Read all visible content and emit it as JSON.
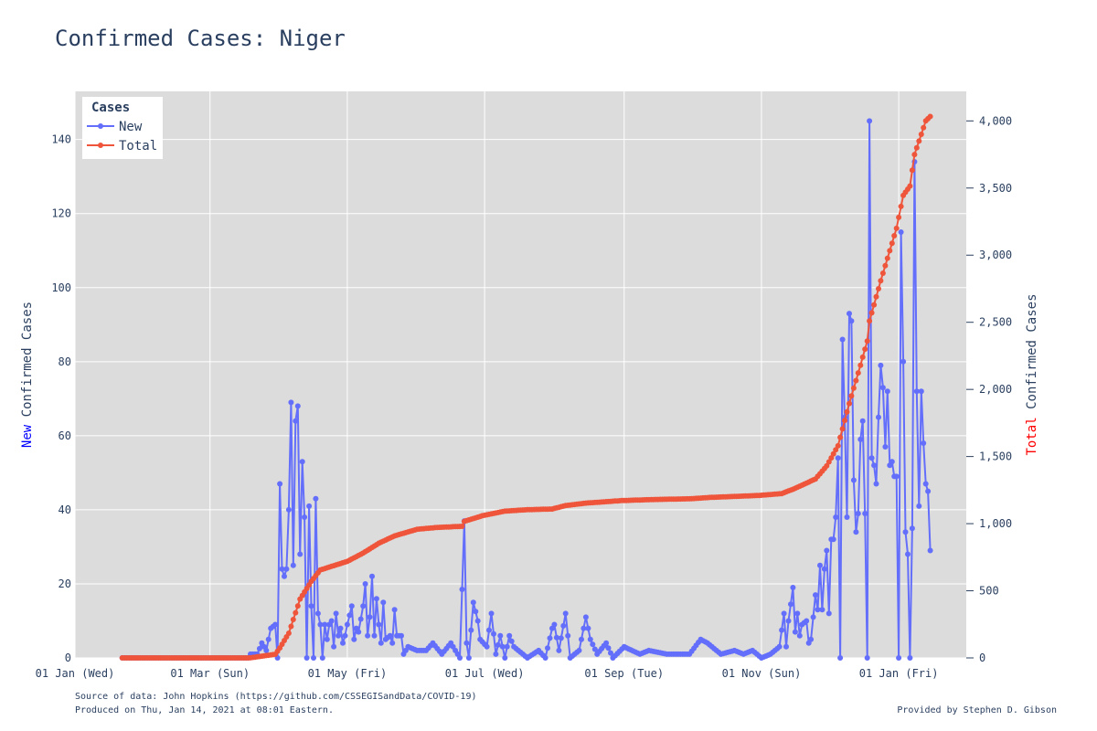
{
  "title": "Confirmed Cases: Niger",
  "colors": {
    "new": "#636efa",
    "total": "#ef553b",
    "plot_bg": "#dcdcdc",
    "grid": "#ffffff",
    "text": "#2a3f5f",
    "y_left_accent": "#0000ff",
    "y_right_accent": "#ff0000"
  },
  "axes": {
    "x_ticks": [
      "01 Jan (Wed)",
      "01 Mar (Sun)",
      "01 May (Fri)",
      "01 Jul (Wed)",
      "01 Sep (Tue)",
      "01 Nov (Sun)",
      "01 Jan (Fri)"
    ],
    "y_left_ticks": [
      "0",
      "20",
      "40",
      "60",
      "80",
      "100",
      "120",
      "140"
    ],
    "y_right_ticks": [
      "0",
      "500",
      "1,000",
      "1,500",
      "2,000",
      "2,500",
      "3,000",
      "3,500",
      "4,000"
    ],
    "y_left_title_accent": "New",
    "y_left_title_rest": " Confirmed Cases",
    "y_right_title_accent": "Total",
    "y_right_title_rest": " Confirmed Cases"
  },
  "legend": {
    "title": "Cases",
    "items": [
      "New",
      "Total"
    ]
  },
  "footer": {
    "source": "Source of data: John Hopkins (https://github.com/CSSEGISandData/COVID-19)",
    "produced": "Produced on Thu, Jan 14, 2021 at 08:01 Eastern.",
    "provided": "Provided by Stephen D. Gibson"
  },
  "chart_data": {
    "type": "line",
    "x_start": "2020-01-22",
    "x_end": "2021-01-13",
    "xlim": [
      "2020-01-01",
      "2021-01-31"
    ],
    "ylim_left": [
      0,
      153
    ],
    "ylim_right": [
      0,
      4220
    ],
    "grid": true,
    "legend_position": "top-left",
    "series": [
      {
        "name": "New",
        "axis": "left",
        "keyframes": [
          [
            "2020-01-22",
            0
          ],
          [
            "2020-03-18",
            0
          ],
          [
            "2020-03-19",
            1
          ],
          [
            "2020-03-22",
            1
          ],
          [
            "2020-03-24",
            4
          ],
          [
            "2020-03-26",
            2
          ],
          [
            "2020-03-28",
            8
          ],
          [
            "2020-03-30",
            9
          ],
          [
            "2020-03-31",
            0
          ],
          [
            "2020-04-01",
            47
          ],
          [
            "2020-04-02",
            24
          ],
          [
            "2020-04-03",
            22
          ],
          [
            "2020-04-04",
            24
          ],
          [
            "2020-04-05",
            40
          ],
          [
            "2020-04-06",
            69
          ],
          [
            "2020-04-07",
            25
          ],
          [
            "2020-04-08",
            64
          ],
          [
            "2020-04-09",
            68
          ],
          [
            "2020-04-10",
            28
          ],
          [
            "2020-04-11",
            53
          ],
          [
            "2020-04-12",
            38
          ],
          [
            "2020-04-13",
            0
          ],
          [
            "2020-04-14",
            41
          ],
          [
            "2020-04-15",
            14
          ],
          [
            "2020-04-16",
            0
          ],
          [
            "2020-04-17",
            43
          ],
          [
            "2020-04-18",
            12
          ],
          [
            "2020-04-19",
            9
          ],
          [
            "2020-04-20",
            0
          ],
          [
            "2020-04-21",
            9
          ],
          [
            "2020-04-22",
            5
          ],
          [
            "2020-04-23",
            9
          ],
          [
            "2020-04-24",
            10
          ],
          [
            "2020-04-25",
            3
          ],
          [
            "2020-04-26",
            12
          ],
          [
            "2020-04-27",
            6
          ],
          [
            "2020-04-28",
            8
          ],
          [
            "2020-04-29",
            4
          ],
          [
            "2020-04-30",
            6
          ],
          [
            "2020-05-01",
            9
          ],
          [
            "2020-05-03",
            14
          ],
          [
            "2020-05-04",
            5
          ],
          [
            "2020-05-05",
            8
          ],
          [
            "2020-05-06",
            7
          ],
          [
            "2020-05-08",
            14
          ],
          [
            "2020-05-09",
            20
          ],
          [
            "2020-05-10",
            6
          ],
          [
            "2020-05-11",
            11
          ],
          [
            "2020-05-12",
            22
          ],
          [
            "2020-05-13",
            6
          ],
          [
            "2020-05-14",
            16
          ],
          [
            "2020-05-15",
            9
          ],
          [
            "2020-05-16",
            4
          ],
          [
            "2020-05-17",
            15
          ],
          [
            "2020-05-18",
            5
          ],
          [
            "2020-05-20",
            6
          ],
          [
            "2020-05-21",
            4
          ],
          [
            "2020-05-22",
            13
          ],
          [
            "2020-05-23",
            6
          ],
          [
            "2020-05-25",
            6
          ],
          [
            "2020-05-26",
            1
          ],
          [
            "2020-05-28",
            3
          ],
          [
            "2020-06-01",
            2
          ],
          [
            "2020-06-05",
            2
          ],
          [
            "2020-06-08",
            4
          ],
          [
            "2020-06-12",
            1
          ],
          [
            "2020-06-16",
            4
          ],
          [
            "2020-06-18",
            2
          ],
          [
            "2020-06-20",
            0
          ],
          [
            "2020-06-22",
            37
          ],
          [
            "2020-06-23",
            4
          ],
          [
            "2020-06-24",
            0
          ],
          [
            "2020-06-26",
            15
          ],
          [
            "2020-06-28",
            10
          ],
          [
            "2020-06-29",
            5
          ],
          [
            "2020-07-02",
            3
          ],
          [
            "2020-07-04",
            12
          ],
          [
            "2020-07-06",
            1
          ],
          [
            "2020-07-08",
            6
          ],
          [
            "2020-07-10",
            0
          ],
          [
            "2020-07-12",
            6
          ],
          [
            "2020-07-14",
            3
          ],
          [
            "2020-07-16",
            2
          ],
          [
            "2020-07-20",
            0
          ],
          [
            "2020-07-25",
            2
          ],
          [
            "2020-07-28",
            0
          ],
          [
            "2020-07-31",
            8
          ],
          [
            "2020-08-01",
            9
          ],
          [
            "2020-08-03",
            2
          ],
          [
            "2020-08-06",
            12
          ],
          [
            "2020-08-08",
            0
          ],
          [
            "2020-08-12",
            2
          ],
          [
            "2020-08-15",
            11
          ],
          [
            "2020-08-17",
            5
          ],
          [
            "2020-08-20",
            1
          ],
          [
            "2020-08-24",
            4
          ],
          [
            "2020-08-27",
            0
          ],
          [
            "2020-09-01",
            3
          ],
          [
            "2020-09-08",
            1
          ],
          [
            "2020-09-12",
            2
          ],
          [
            "2020-09-20",
            1
          ],
          [
            "2020-09-30",
            1
          ],
          [
            "2020-10-05",
            5
          ],
          [
            "2020-10-08",
            4
          ],
          [
            "2020-10-14",
            1
          ],
          [
            "2020-10-20",
            2
          ],
          [
            "2020-10-24",
            1
          ],
          [
            "2020-10-28",
            2
          ],
          [
            "2020-11-01",
            0
          ],
          [
            "2020-11-05",
            1
          ],
          [
            "2020-11-09",
            3
          ],
          [
            "2020-11-11",
            12
          ],
          [
            "2020-11-12",
            3
          ],
          [
            "2020-11-13",
            10
          ],
          [
            "2020-11-15",
            19
          ],
          [
            "2020-11-16",
            7
          ],
          [
            "2020-11-17",
            12
          ],
          [
            "2020-11-18",
            6
          ],
          [
            "2020-11-19",
            9
          ],
          [
            "2020-11-21",
            10
          ],
          [
            "2020-11-22",
            4
          ],
          [
            "2020-11-23",
            5
          ],
          [
            "2020-11-24",
            11
          ],
          [
            "2020-11-25",
            17
          ],
          [
            "2020-11-26",
            13
          ],
          [
            "2020-11-27",
            25
          ],
          [
            "2020-11-28",
            13
          ],
          [
            "2020-11-29",
            24
          ],
          [
            "2020-11-30",
            29
          ],
          [
            "2020-12-01",
            12
          ],
          [
            "2020-12-02",
            32
          ],
          [
            "2020-12-03",
            32
          ],
          [
            "2020-12-04",
            38
          ],
          [
            "2020-12-05",
            54
          ],
          [
            "2020-12-06",
            0
          ],
          [
            "2020-12-07",
            86
          ],
          [
            "2020-12-08",
            65
          ],
          [
            "2020-12-09",
            38
          ],
          [
            "2020-12-10",
            93
          ],
          [
            "2020-12-11",
            91
          ],
          [
            "2020-12-12",
            48
          ],
          [
            "2020-12-13",
            34
          ],
          [
            "2020-12-14",
            39
          ],
          [
            "2020-12-15",
            59
          ],
          [
            "2020-12-16",
            64
          ],
          [
            "2020-12-17",
            39
          ],
          [
            "2020-12-18",
            0
          ],
          [
            "2020-12-19",
            145
          ],
          [
            "2020-12-20",
            54
          ],
          [
            "2020-12-21",
            52
          ],
          [
            "2020-12-22",
            47
          ],
          [
            "2020-12-23",
            65
          ],
          [
            "2020-12-24",
            79
          ],
          [
            "2020-12-25",
            73
          ],
          [
            "2020-12-26",
            57
          ],
          [
            "2020-12-27",
            72
          ],
          [
            "2020-12-28",
            52
          ],
          [
            "2020-12-29",
            53
          ],
          [
            "2020-12-30",
            49
          ],
          [
            "2020-12-31",
            49
          ],
          [
            "2021-01-01",
            0
          ],
          [
            "2021-01-02",
            115
          ],
          [
            "2021-01-03",
            80
          ],
          [
            "2021-01-04",
            34
          ],
          [
            "2021-01-05",
            28
          ],
          [
            "2021-01-06",
            0
          ],
          [
            "2021-01-07",
            35
          ],
          [
            "2021-01-08",
            134
          ],
          [
            "2021-01-09",
            72
          ],
          [
            "2021-01-10",
            41
          ],
          [
            "2021-01-11",
            72
          ],
          [
            "2021-01-12",
            58
          ],
          [
            "2021-01-13",
            47
          ],
          [
            "2021-01-14",
            45
          ],
          [
            "2021-01-15",
            29
          ]
        ]
      },
      {
        "name": "Total",
        "axis": "right",
        "keyframes": [
          [
            "2020-01-22",
            0
          ],
          [
            "2020-03-18",
            0
          ],
          [
            "2020-03-19",
            1
          ],
          [
            "2020-03-30",
            27
          ],
          [
            "2020-04-01",
            74
          ],
          [
            "2020-04-05",
            184
          ],
          [
            "2020-04-10",
            438
          ],
          [
            "2020-04-15",
            570
          ],
          [
            "2020-04-19",
            655
          ],
          [
            "2020-04-22",
            671
          ],
          [
            "2020-05-01",
            719
          ],
          [
            "2020-05-08",
            781
          ],
          [
            "2020-05-15",
            854
          ],
          [
            "2020-05-22",
            909
          ],
          [
            "2020-06-01",
            958
          ],
          [
            "2020-06-10",
            972
          ],
          [
            "2020-06-21",
            980
          ],
          [
            "2020-06-22",
            1017
          ],
          [
            "2020-06-30",
            1059
          ],
          [
            "2020-07-10",
            1093
          ],
          [
            "2020-07-20",
            1104
          ],
          [
            "2020-07-31",
            1109
          ],
          [
            "2020-08-06",
            1135
          ],
          [
            "2020-08-15",
            1153
          ],
          [
            "2020-08-31",
            1172
          ],
          [
            "2020-09-15",
            1180
          ],
          [
            "2020-09-30",
            1185
          ],
          [
            "2020-10-10",
            1196
          ],
          [
            "2020-10-31",
            1210
          ],
          [
            "2020-11-10",
            1224
          ],
          [
            "2020-11-15",
            1256
          ],
          [
            "2020-11-20",
            1294
          ],
          [
            "2020-11-25",
            1333
          ],
          [
            "2020-11-30",
            1430
          ],
          [
            "2020-12-05",
            1580
          ],
          [
            "2020-12-10",
            1895
          ],
          [
            "2020-12-15",
            2180
          ],
          [
            "2020-12-18",
            2360
          ],
          [
            "2020-12-19",
            2510
          ],
          [
            "2020-12-24",
            2810
          ],
          [
            "2020-12-31",
            3200
          ],
          [
            "2021-01-03",
            3445
          ],
          [
            "2021-01-06",
            3515
          ],
          [
            "2021-01-08",
            3750
          ],
          [
            "2021-01-13",
            4000
          ],
          [
            "2021-01-15",
            4033
          ]
        ]
      }
    ]
  }
}
